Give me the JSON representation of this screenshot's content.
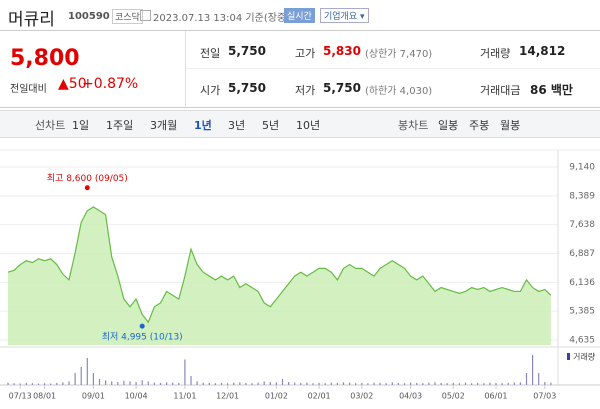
{
  "header": {
    "name": "머큐리",
    "code": "100590",
    "market": "코스닥",
    "datetime": "2023.07.13 13:04 기준(장중)",
    "realtime": "실시간",
    "company": "기업개요"
  },
  "quote": {
    "price": "5,800",
    "change_label": "전일대비",
    "change": "50",
    "change_pct": "+0.87%",
    "stats": [
      {
        "label": "전일",
        "value": "5,750"
      },
      {
        "label": "고가",
        "value": "5,830",
        "note": "(상한가 7,470)"
      },
      {
        "label": "거래량",
        "value": "14,812"
      },
      {
        "label": "시가",
        "value": "5,750"
      },
      {
        "label": "저가",
        "value": "5,750",
        "note": "(하한가 4,030)"
      },
      {
        "label": "거래대금",
        "value": "86 백만"
      }
    ]
  },
  "tabs": {
    "line_label": "선차트",
    "line_items": [
      "1일",
      "1주일",
      "3개월",
      "1년",
      "3년",
      "5년",
      "10년"
    ],
    "selected": "1년",
    "candle_label": "봉차트",
    "candle_items": [
      "일봉",
      "주봉",
      "월봉"
    ]
  },
  "chart_data": {
    "type": "area",
    "color": "#66bb44",
    "fill": "#c8eeb0",
    "categories": [
      null,
      null,
      "07/13",
      null,
      null,
      null,
      "08/01",
      null,
      null,
      null,
      null,
      null,
      null,
      null,
      "09/01",
      null,
      null,
      null,
      null,
      null,
      null,
      "10/04",
      null,
      null,
      null,
      null,
      null,
      null,
      null,
      "11/01",
      null,
      null,
      null,
      null,
      null,
      null,
      "12/01",
      null,
      null,
      null,
      null,
      null,
      null,
      null,
      "01/02",
      null,
      null,
      null,
      null,
      null,
      null,
      "02/01",
      null,
      null,
      null,
      null,
      null,
      null,
      "03/02",
      null,
      null,
      null,
      null,
      null,
      null,
      null,
      "04/03",
      null,
      null,
      null,
      null,
      null,
      null,
      "05/02",
      null,
      null,
      null,
      null,
      null,
      null,
      "06/01",
      null,
      null,
      null,
      null,
      null,
      null,
      null,
      "07/03",
      null
    ],
    "values": [
      6400,
      6450,
      6600,
      6700,
      6650,
      6750,
      6700,
      6750,
      6600,
      6350,
      6200,
      6900,
      7700,
      8000,
      8100,
      8000,
      7900,
      6800,
      6300,
      5700,
      5500,
      5700,
      5300,
      5100,
      5500,
      5600,
      5900,
      5800,
      5700,
      6300,
      7000,
      6600,
      6400,
      6300,
      6200,
      6300,
      6200,
      6300,
      6000,
      6100,
      6000,
      5900,
      5600,
      5500,
      5700,
      5900,
      6100,
      6300,
      6400,
      6300,
      6400,
      6500,
      6500,
      6400,
      6200,
      6500,
      6600,
      6500,
      6500,
      6400,
      6300,
      6500,
      6600,
      6700,
      6600,
      6500,
      6300,
      6200,
      6300,
      6100,
      5900,
      6000,
      5950,
      5900,
      5850,
      5900,
      6000,
      5950,
      6000,
      5900,
      5950,
      6000,
      5950,
      5900,
      5900,
      6200,
      6000,
      5900,
      5950,
      5800
    ],
    "ylim": [
      4635,
      9140
    ],
    "yticks": [
      {
        "value": 4635,
        "label": "4,635"
      },
      {
        "value": 5385,
        "label": "5,385"
      },
      {
        "value": 6136,
        "label": "6,136"
      },
      {
        "value": 6887,
        "label": "6,887"
      },
      {
        "value": 7638,
        "label": "7,638"
      },
      {
        "value": 8389,
        "label": "8,389"
      },
      {
        "value": 9140,
        "label": "9,140"
      }
    ],
    "grid": true,
    "annotations": [
      {
        "text": "최고 8,600 (09/05)",
        "value": 8600,
        "index": 13,
        "color": "#e00000"
      },
      {
        "text": "최저 4,995 (10/13)",
        "value": 4995,
        "index": 22,
        "color": "#1a66cc"
      }
    ],
    "volume": {
      "label": "거래량",
      "color": "#8888bb",
      "values": [
        8,
        6,
        5,
        7,
        6,
        5,
        6,
        5,
        7,
        9,
        12,
        40,
        60,
        90,
        40,
        20,
        15,
        12,
        10,
        14,
        12,
        10,
        16,
        12,
        8,
        7,
        9,
        8,
        7,
        85,
        30,
        12,
        8,
        7,
        6,
        7,
        6,
        8,
        9,
        7,
        6,
        8,
        12,
        10,
        9,
        20,
        10,
        8,
        7,
        8,
        6,
        7,
        6,
        8,
        7,
        9,
        8,
        6,
        7,
        6,
        8,
        7,
        6,
        9,
        7,
        6,
        8,
        7,
        6,
        8,
        9,
        7,
        6,
        7,
        6,
        8,
        6,
        7,
        6,
        8,
        7,
        6,
        7,
        8,
        9,
        40,
        100,
        40,
        10,
        8
      ]
    }
  }
}
